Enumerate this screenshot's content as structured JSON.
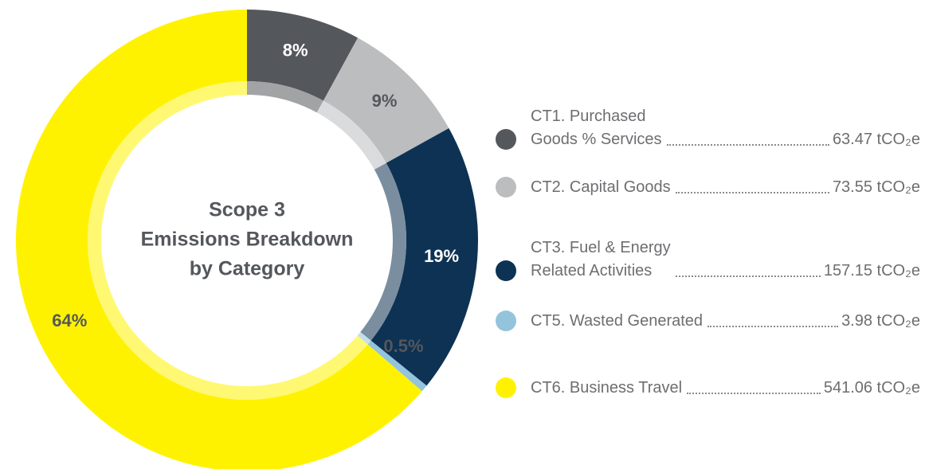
{
  "chart_data": {
    "type": "pie",
    "title_lines": [
      "Scope 3",
      "Emissions Breakdown",
      "by Category"
    ],
    "categories": [
      "CT1. Purchased\nGoods % Services",
      "CT2. Capital Goods",
      "CT3. Fuel & Energy\nRelated Activities",
      "CT5. Wasted Generated",
      "CT6. Business Travel"
    ],
    "colors": [
      "#54575c",
      "#bcbdbf",
      "#0d3253",
      "#93c4dc",
      "#fff200"
    ],
    "values": [
      8,
      9,
      19,
      0.5,
      64
    ],
    "value_labels": [
      "8%",
      "9%",
      "19%",
      "0.5%",
      "64%"
    ],
    "amounts": [
      63.47,
      73.55,
      157.15,
      3.98,
      541.06
    ],
    "amount_labels": [
      "63.47 tCO₂e",
      "73.55 tCO₂e",
      "157.15 tCO₂e",
      "3.98 tCO₂e",
      "541.06 tCO₂e"
    ]
  }
}
